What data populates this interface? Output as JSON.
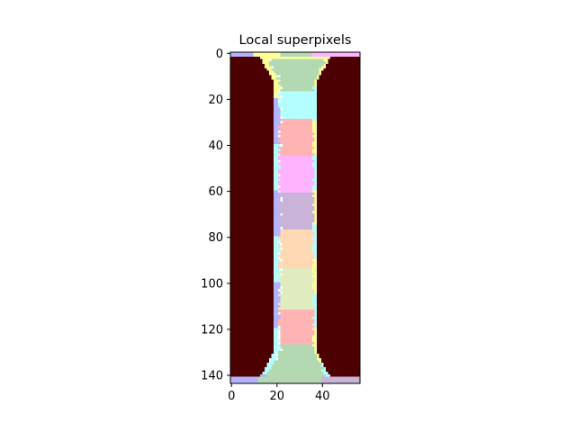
{
  "chart_data": {
    "type": "heatmap",
    "title": "Local superpixels",
    "xlabel": "",
    "ylabel": "",
    "image_shape": [
      144,
      57
    ],
    "xlim": [
      -0.5,
      56.5
    ],
    "ylim": [
      143.5,
      -0.5
    ],
    "x_ticks": [
      0,
      20,
      40
    ],
    "y_ticks": [
      0,
      20,
      40,
      60,
      80,
      100,
      120,
      140
    ],
    "grid": false,
    "legend": "none",
    "background_color": "#4d0000",
    "edge_color": "#ffffff",
    "segment_colors": [
      "#b3b3ff",
      "#ffff99",
      "#b3d9b3",
      "#ffb3ff",
      "#b3ffff",
      "#ffb3b3",
      "#c9b3d9",
      "#ffd9b3",
      "#e0ecbf"
    ],
    "column_regions": [
      {
        "label": "left-background",
        "x_range": [
          0,
          18
        ]
      },
      {
        "label": "center-strip",
        "x_range": [
          19,
          37
        ]
      },
      {
        "label": "right-background",
        "x_range": [
          38,
          56
        ]
      }
    ],
    "center_segments": [
      {
        "color": "#b3d9b3",
        "y_range": [
          3,
          16
        ]
      },
      {
        "color": "#b3ffff",
        "y_range": [
          17,
          28
        ]
      },
      {
        "color": "#ffb3b3",
        "y_range": [
          29,
          44
        ]
      },
      {
        "color": "#ffb3ff",
        "y_range": [
          45,
          60
        ]
      },
      {
        "color": "#c9b3d9",
        "y_range": [
          61,
          76
        ]
      },
      {
        "color": "#ffd9b3",
        "y_range": [
          77,
          93
        ]
      },
      {
        "color": "#e0ecbf",
        "y_range": [
          94,
          111
        ]
      },
      {
        "color": "#ffb3b3",
        "y_range": [
          112,
          126
        ]
      },
      {
        "color": "#b3d9b3",
        "y_range": [
          127,
          143
        ]
      }
    ]
  }
}
